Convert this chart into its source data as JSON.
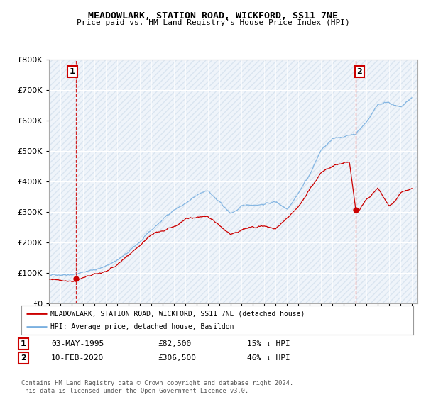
{
  "title": "MEADOWLARK, STATION ROAD, WICKFORD, SS11 7NE",
  "subtitle": "Price paid vs. HM Land Registry's House Price Index (HPI)",
  "ylim": [
    0,
    800000
  ],
  "sale1_year": 1995.37,
  "sale1_price": 82500,
  "sale2_year": 2020.08,
  "sale2_price": 306500,
  "sale1_date": "03-MAY-1995",
  "sale2_date": "10-FEB-2020",
  "sale1_hpi_text": "15% ↓ HPI",
  "sale2_hpi_text": "46% ↓ HPI",
  "hpi_line_color": "#7ab0e0",
  "price_line_color": "#cc0000",
  "vline_color": "#cc0000",
  "legend_label_price": "MEADOWLARK, STATION ROAD, WICKFORD, SS11 7NE (detached house)",
  "legend_label_hpi": "HPI: Average price, detached house, Basildon",
  "footer_text": "Contains HM Land Registry data © Crown copyright and database right 2024.\nThis data is licensed under the Open Government Licence v3.0.",
  "plot_bg_color": "#dce8f5",
  "hatch_bg_color": "#ffffff",
  "annotation_box_color": "#cc0000"
}
